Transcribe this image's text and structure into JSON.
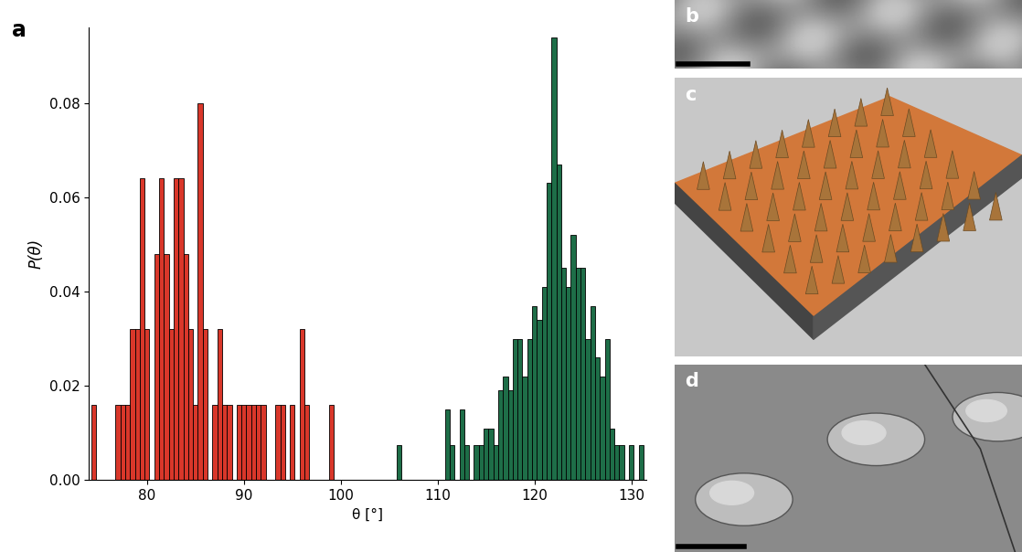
{
  "chart_data": {
    "type": "histogram",
    "panel_label": "a",
    "x_label": "θ [°]",
    "y_label": "P(θ)",
    "xlim": [
      74,
      131.5
    ],
    "ylim": [
      0,
      0.096
    ],
    "xticks": [
      80,
      90,
      100,
      110,
      120,
      130
    ],
    "yticks": [
      {
        "value": 0,
        "label": "0.00"
      },
      0.02,
      0.04,
      0.06,
      0.08
    ],
    "series": [
      {
        "color": "#d9372a",
        "bins": [
          74.25,
          74.75,
          75.25,
          75.75,
          76.25,
          76.75,
          77.25,
          77.75,
          78.25,
          78.75,
          79.25,
          79.75,
          80.25,
          80.75,
          81.25,
          81.75,
          82.25,
          82.75,
          83.25,
          83.75,
          84.25,
          84.75,
          85.25,
          85.75,
          86.25,
          86.75,
          87.25,
          87.75,
          88.25,
          88.75,
          89.25,
          89.75,
          90.25,
          90.75,
          91.25,
          91.75,
          92.25,
          92.75,
          93.25,
          93.75,
          94.25,
          94.75,
          95.25,
          95.75,
          96.25,
          96.75,
          97.25,
          97.75,
          98.25,
          98.75,
          99.25
        ],
        "values": [
          0.016,
          0,
          0,
          0,
          0,
          0.016,
          0.016,
          0.016,
          0.032,
          0.032,
          0.064,
          0.032,
          0,
          0.048,
          0.064,
          0.048,
          0.032,
          0.064,
          0.064,
          0.048,
          0.032,
          0.016,
          0.08,
          0.032,
          0,
          0.016,
          0.032,
          0.016,
          0.016,
          0,
          0.016,
          0.016,
          0.016,
          0.016,
          0.016,
          0.016,
          0,
          0,
          0.016,
          0.016,
          0,
          0.016,
          0,
          0.032,
          0.016,
          0,
          0,
          0,
          0,
          0.016
        ]
      },
      {
        "color": "#1e6e48",
        "bins": [
          105.75,
          106.25,
          106.75,
          107.25,
          107.75,
          108.25,
          108.75,
          109.25,
          109.75,
          110.25,
          110.75,
          111.25,
          111.75,
          112.25,
          112.75,
          113.25,
          113.75,
          114.25,
          114.75,
          115.25,
          115.75,
          116.25,
          116.75,
          117.25,
          117.75,
          118.25,
          118.75,
          119.25,
          119.75,
          120.25,
          120.75,
          121.25,
          121.75,
          122.25,
          122.75,
          123.25,
          123.75,
          124.25,
          124.75,
          125.25,
          125.75,
          126.25,
          126.75,
          127.25,
          127.75,
          128.25,
          128.75,
          129.25,
          129.75,
          130.25,
          130.75,
          131.25
        ],
        "values": [
          0.0075,
          0,
          0,
          0,
          0,
          0,
          0,
          0,
          0,
          0,
          0.015,
          0.0075,
          0,
          0.015,
          0.0075,
          0,
          0.0075,
          0.0075,
          0.011,
          0.011,
          0.0075,
          0.019,
          0.022,
          0.019,
          0.03,
          0.03,
          0.022,
          0.03,
          0.037,
          0.034,
          0.041,
          0.063,
          0.094,
          0.067,
          0.045,
          0.041,
          0.052,
          0.045,
          0.045,
          0.03,
          0.037,
          0.026,
          0.022,
          0.03,
          0.011,
          0.0075,
          0.0075,
          0,
          0.0075,
          0,
          0.0075
        ]
      }
    ]
  },
  "image_panels": [
    {
      "label": "b"
    },
    {
      "label": "c"
    },
    {
      "label": "d"
    }
  ]
}
